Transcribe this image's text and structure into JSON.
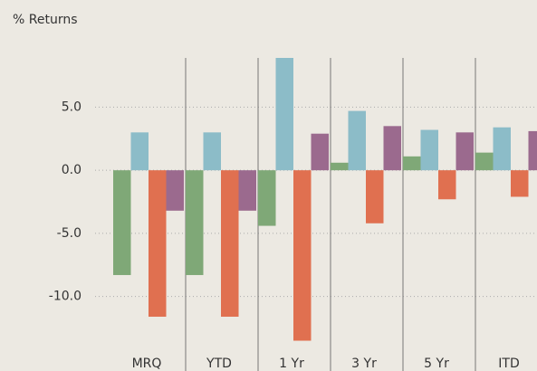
{
  "chart_data": {
    "type": "bar",
    "y_axis_label": "% Returns",
    "categories": [
      "MRQ",
      "YTD",
      "1 Yr",
      "3 Yr",
      "5 Yr",
      "ITD"
    ],
    "series": [
      {
        "color": "#7fa877",
        "values": [
          -8.3,
          -8.3,
          -4.4,
          0.6,
          1.1,
          1.4
        ]
      },
      {
        "color": "#8cbcc8",
        "values": [
          3.0,
          3.0,
          8.9,
          4.7,
          3.2,
          3.4
        ]
      },
      {
        "color": "#e07050",
        "values": [
          -11.6,
          -11.6,
          -13.5,
          -4.2,
          -2.3,
          -2.1
        ]
      },
      {
        "color": "#9b6a8e",
        "values": [
          -3.2,
          -3.2,
          2.9,
          3.5,
          3.0,
          3.1
        ]
      }
    ],
    "ylim": [
      -15.9,
      8.9
    ],
    "yticks": [
      {
        "value": -10,
        "label": "-10.0"
      },
      {
        "value": -5,
        "label": "-5.0"
      },
      {
        "value": 0,
        "label": "0.0"
      },
      {
        "value": 5,
        "label": "5.0"
      }
    ],
    "grid": true
  }
}
